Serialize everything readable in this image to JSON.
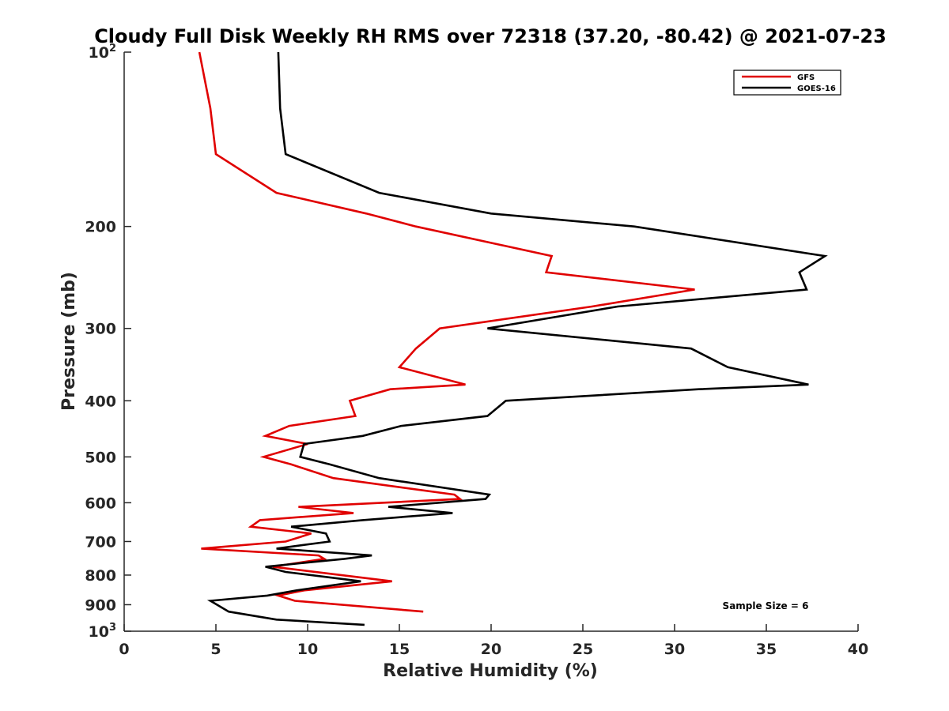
{
  "chart_data": {
    "type": "line",
    "title": "Cloudy Full Disk Weekly RH RMS over 72318 (37.20, -80.42) @ 2021-07-23",
    "xlabel": "Relative Humidity (%)",
    "ylabel": "Pressure (mb)",
    "xlim": [
      0,
      40
    ],
    "ylim": [
      100,
      1000
    ],
    "yscale": "log",
    "y_reversed": true,
    "x_ticks": [
      0,
      5,
      10,
      15,
      20,
      25,
      30,
      35,
      40
    ],
    "x_tick_labels": [
      "0",
      "5",
      "10",
      "15",
      "20",
      "25",
      "30",
      "35",
      "40"
    ],
    "y_ticks": [
      100,
      200,
      300,
      400,
      500,
      600,
      700,
      800,
      900,
      1000
    ],
    "y_tick_labels": [
      {
        "base": "10",
        "exp": "2"
      },
      {
        "text": "200"
      },
      {
        "text": "300"
      },
      {
        "text": "400"
      },
      {
        "text": "500"
      },
      {
        "text": "600"
      },
      {
        "text": "700"
      },
      {
        "text": "800"
      },
      {
        "text": "900"
      },
      {
        "base": "10",
        "exp": "3"
      }
    ],
    "legend_position": "top-right",
    "annotation": "Sample Size = 6",
    "series": [
      {
        "name": "GFS",
        "color": "#e00000",
        "points": [
          [
            4.1,
            100
          ],
          [
            4.7,
            125
          ],
          [
            5.0,
            150
          ],
          [
            8.3,
            175
          ],
          [
            13.2,
            190
          ],
          [
            15.9,
            200
          ],
          [
            23.3,
            225
          ],
          [
            23.0,
            240
          ],
          [
            31.1,
            257
          ],
          [
            25.5,
            275
          ],
          [
            17.2,
            300
          ],
          [
            15.9,
            325
          ],
          [
            15.0,
            350
          ],
          [
            18.6,
            375
          ],
          [
            14.5,
            382
          ],
          [
            12.3,
            400
          ],
          [
            12.6,
            425
          ],
          [
            9.0,
            442
          ],
          [
            7.7,
            460
          ],
          [
            10.0,
            475
          ],
          [
            7.6,
            500
          ],
          [
            9.1,
            515
          ],
          [
            11.4,
            544
          ],
          [
            18.0,
            581
          ],
          [
            18.3,
            591
          ],
          [
            9.5,
            610
          ],
          [
            12.5,
            625
          ],
          [
            7.4,
            643
          ],
          [
            6.9,
            660
          ],
          [
            10.2,
            678
          ],
          [
            8.8,
            700
          ],
          [
            4.2,
            720
          ],
          [
            10.6,
            740
          ],
          [
            10.9,
            750
          ],
          [
            8.1,
            774
          ],
          [
            14.6,
            820
          ],
          [
            9.8,
            850
          ],
          [
            8.4,
            868
          ],
          [
            9.3,
            886
          ],
          [
            16.3,
            925
          ]
        ]
      },
      {
        "name": "GOES-16",
        "color": "#000000",
        "points": [
          [
            8.4,
            100
          ],
          [
            8.5,
            125
          ],
          [
            8.8,
            150
          ],
          [
            13.9,
            175
          ],
          [
            20.0,
            190
          ],
          [
            27.8,
            200
          ],
          [
            38.2,
            225
          ],
          [
            36.8,
            240
          ],
          [
            37.2,
            257
          ],
          [
            26.9,
            275
          ],
          [
            19.8,
            300
          ],
          [
            30.9,
            325
          ],
          [
            32.9,
            350
          ],
          [
            37.3,
            375
          ],
          [
            31.3,
            382
          ],
          [
            20.8,
            400
          ],
          [
            19.8,
            425
          ],
          [
            15.1,
            442
          ],
          [
            13.0,
            460
          ],
          [
            9.8,
            475
          ],
          [
            9.6,
            500
          ],
          [
            11.2,
            515
          ],
          [
            13.9,
            544
          ],
          [
            19.9,
            581
          ],
          [
            19.7,
            591
          ],
          [
            14.4,
            610
          ],
          [
            17.9,
            625
          ],
          [
            13.0,
            643
          ],
          [
            9.1,
            660
          ],
          [
            11.0,
            678
          ],
          [
            11.2,
            700
          ],
          [
            8.3,
            720
          ],
          [
            13.5,
            740
          ],
          [
            12.0,
            750
          ],
          [
            7.7,
            774
          ],
          [
            8.8,
            790
          ],
          [
            12.9,
            820
          ],
          [
            9.4,
            850
          ],
          [
            7.8,
            868
          ],
          [
            4.7,
            886
          ],
          [
            5.7,
            925
          ],
          [
            8.3,
            955
          ],
          [
            13.1,
            975
          ]
        ]
      }
    ]
  }
}
